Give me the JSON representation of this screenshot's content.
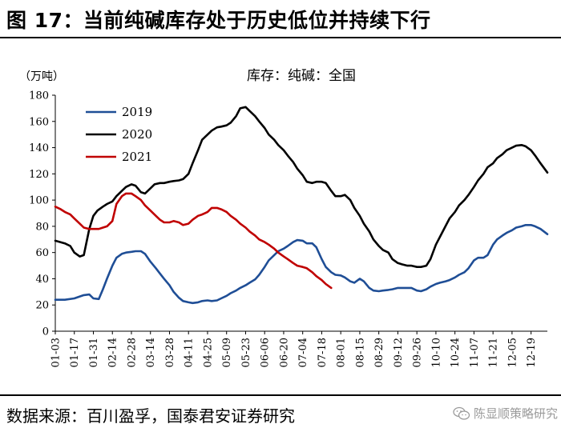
{
  "figure": {
    "title": "图 17：当前纯碱库存处于历史低位并持续下行",
    "source": "数据来源：百川盈孚，国泰君安证券研究",
    "watermark": "陈显顺策略研究"
  },
  "chart_data": {
    "type": "line",
    "title": "库存：纯碱：全国",
    "ylabel": "（万吨）",
    "xlabel": "",
    "ylim": [
      0,
      180
    ],
    "yticks": [
      0,
      20,
      40,
      60,
      80,
      100,
      120,
      140,
      160,
      180
    ],
    "xlim": [
      3,
      365
    ],
    "xticks": [
      {
        "label": "01-03",
        "day": 3
      },
      {
        "label": "01-17",
        "day": 17
      },
      {
        "label": "01-31",
        "day": 31
      },
      {
        "label": "02-14",
        "day": 45
      },
      {
        "label": "02-28",
        "day": 59
      },
      {
        "label": "03-14",
        "day": 73
      },
      {
        "label": "03-28",
        "day": 87
      },
      {
        "label": "04-11",
        "day": 101
      },
      {
        "label": "04-25",
        "day": 115
      },
      {
        "label": "05-09",
        "day": 129
      },
      {
        "label": "05-23",
        "day": 143
      },
      {
        "label": "06-06",
        "day": 157
      },
      {
        "label": "06-20",
        "day": 171
      },
      {
        "label": "07-04",
        "day": 185
      },
      {
        "label": "07-18",
        "day": 199
      },
      {
        "label": "08-01",
        "day": 213
      },
      {
        "label": "08-15",
        "day": 227
      },
      {
        "label": "08-29",
        "day": 241
      },
      {
        "label": "09-12",
        "day": 255
      },
      {
        "label": "09-26",
        "day": 269
      },
      {
        "label": "10-10",
        "day": 283
      },
      {
        "label": "10-24",
        "day": 297
      },
      {
        "label": "11-07",
        "day": 311
      },
      {
        "label": "11-21",
        "day": 325
      },
      {
        "label": "12-05",
        "day": 339
      },
      {
        "label": "12-19",
        "day": 353
      }
    ],
    "legend_position": "top-left",
    "series": [
      {
        "name": "2019",
        "color": "#1f4e96",
        "x": [
          3,
          10,
          17,
          21,
          24,
          28,
          31,
          35,
          38,
          41,
          45,
          48,
          52,
          55,
          59,
          62,
          66,
          69,
          73,
          77,
          80,
          83,
          87,
          90,
          94,
          97,
          101,
          104,
          108,
          111,
          115,
          118,
          122,
          125,
          129,
          132,
          136,
          139,
          143,
          146,
          150,
          153,
          157,
          160,
          164,
          167,
          171,
          174,
          178,
          181,
          185,
          188,
          192,
          195,
          199,
          202,
          206,
          209,
          213,
          216,
          220,
          223,
          227,
          230,
          234,
          237,
          241,
          244,
          248,
          251,
          255,
          258,
          262,
          265,
          269,
          272,
          276,
          279,
          283,
          286,
          290,
          293,
          297,
          300,
          304,
          307,
          311,
          314,
          318,
          321,
          325,
          328,
          332,
          335,
          339,
          342,
          346,
          349,
          353,
          356,
          360,
          365
        ],
        "y": [
          24,
          24,
          25,
          26.5,
          27.5,
          28,
          25,
          24.5,
          32,
          40,
          50,
          56,
          59,
          60,
          60.5,
          61,
          61,
          59,
          53,
          48,
          44,
          40,
          35,
          30,
          25.5,
          23,
          22,
          21.5,
          22,
          23,
          23.5,
          23,
          23.5,
          25,
          27,
          29,
          31,
          33,
          35,
          37,
          39.5,
          43,
          49,
          54,
          58,
          61,
          63,
          65,
          68,
          69.5,
          69,
          67,
          67,
          64,
          55,
          49,
          45,
          43,
          42.5,
          41,
          38,
          37,
          40,
          38,
          33,
          31,
          30.5,
          31,
          31.5,
          32,
          33,
          33,
          33,
          33,
          31,
          30.5,
          32,
          34,
          36,
          37,
          38,
          39,
          41,
          43,
          45,
          48,
          54,
          56,
          56,
          58,
          66,
          70,
          73,
          75,
          77,
          79,
          80,
          81,
          81,
          80,
          78,
          74
        ]
      },
      {
        "name": "2020",
        "color": "#000000",
        "x": [
          3,
          10,
          14,
          17,
          21,
          24,
          28,
          31,
          34,
          38,
          41,
          45,
          48,
          52,
          55,
          59,
          62,
          66,
          69,
          73,
          76,
          80,
          83,
          87,
          90,
          94,
          97,
          101,
          104,
          108,
          111,
          115,
          118,
          122,
          125,
          129,
          132,
          136,
          139,
          143,
          146,
          150,
          153,
          157,
          160,
          164,
          167,
          171,
          174,
          178,
          181,
          185,
          188,
          192,
          195,
          199,
          202,
          206,
          209,
          213,
          216,
          220,
          223,
          227,
          230,
          234,
          237,
          241,
          244,
          248,
          251,
          255,
          258,
          262,
          265,
          269,
          272,
          276,
          279,
          283,
          286,
          290,
          293,
          297,
          300,
          304,
          307,
          311,
          314,
          318,
          321,
          325,
          328,
          332,
          335,
          339,
          342,
          346,
          349,
          353,
          356,
          360,
          365
        ],
        "y": [
          69,
          67,
          65,
          60,
          57,
          58,
          78,
          88,
          92,
          95,
          97,
          99,
          103,
          107,
          110,
          112,
          111,
          106,
          105,
          109,
          112,
          113,
          113,
          114,
          114.5,
          115,
          116,
          120,
          128,
          138,
          146,
          150,
          153,
          155.5,
          156,
          157,
          159,
          164,
          170,
          171,
          168,
          164,
          160,
          155,
          150,
          146,
          142,
          138,
          134,
          129,
          124,
          119,
          114,
          113,
          114,
          114,
          113,
          107,
          103,
          103,
          104,
          100,
          94,
          88,
          82,
          76,
          70,
          65,
          62,
          60,
          55,
          52,
          51,
          50,
          50,
          49,
          49,
          50,
          55,
          66,
          72,
          80,
          86,
          91,
          96,
          100,
          104,
          110,
          115,
          120,
          125,
          128,
          132,
          135,
          138,
          140,
          141.5,
          142,
          141,
          138,
          134,
          128,
          121
        ]
      },
      {
        "name": "2021",
        "color": "#c00000",
        "x": [
          3,
          7,
          10,
          14,
          17,
          21,
          24,
          28,
          31,
          35,
          38,
          41,
          45,
          48,
          52,
          55,
          59,
          62,
          66,
          69,
          73,
          77,
          80,
          83,
          87,
          90,
          94,
          97,
          101,
          104,
          108,
          111,
          115,
          118,
          122,
          125,
          129,
          132,
          136,
          139,
          143,
          146,
          150,
          153,
          157,
          160,
          164,
          167,
          171,
          174,
          178,
          181,
          185,
          188,
          192,
          195,
          199,
          202,
          206
        ],
        "y": [
          95,
          93,
          91,
          89,
          86,
          82,
          79,
          78,
          78,
          78,
          79,
          80,
          84,
          97,
          103,
          105,
          105,
          103,
          100,
          96,
          92,
          88,
          85,
          83,
          83,
          84,
          83,
          81,
          82,
          85,
          88,
          89,
          91,
          94,
          94,
          93,
          91,
          88,
          85,
          82,
          79,
          76,
          73,
          70,
          68,
          66,
          63,
          60,
          57,
          55,
          52,
          50,
          49,
          48,
          45,
          42,
          39,
          36,
          33
        ]
      }
    ]
  }
}
